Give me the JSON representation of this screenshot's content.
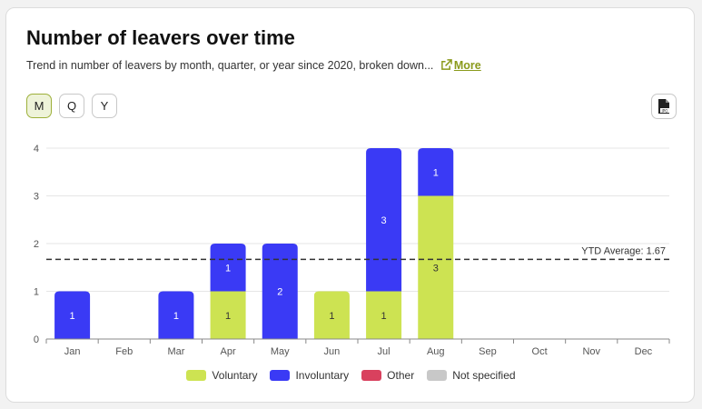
{
  "header": {
    "title": "Number of leavers over time",
    "subtitle": "Trend in number of leavers by month, quarter, or year since 2020, broken down...",
    "more_label": "More"
  },
  "period_toggle": {
    "options": [
      "M",
      "Q",
      "Y"
    ],
    "selected": "M"
  },
  "export_icon": "jpg-export-icon",
  "colors": {
    "Voluntary": "#cde352",
    "Involuntary": "#3a3af5",
    "Other": "#d9415e",
    "Not specified": "#c8c8c8",
    "accent": "#8a9a1b"
  },
  "chart_data": {
    "type": "bar",
    "stacked": true,
    "categories": [
      "Jan",
      "Feb",
      "Mar",
      "Apr",
      "May",
      "Jun",
      "Jul",
      "Aug",
      "Sep",
      "Oct",
      "Nov",
      "Dec"
    ],
    "series": [
      {
        "name": "Voluntary",
        "values": [
          0,
          0,
          0,
          1,
          0,
          1,
          1,
          3,
          0,
          0,
          0,
          0
        ]
      },
      {
        "name": "Involuntary",
        "values": [
          1,
          0,
          1,
          1,
          2,
          0,
          3,
          1,
          0,
          0,
          0,
          0
        ]
      },
      {
        "name": "Other",
        "values": [
          0,
          0,
          0,
          0,
          0,
          0,
          0,
          0,
          0,
          0,
          0,
          0
        ]
      },
      {
        "name": "Not specified",
        "values": [
          0,
          0,
          0,
          0,
          0,
          0,
          0,
          0,
          0,
          0,
          0,
          0
        ]
      }
    ],
    "yticks": [
      0,
      1,
      2,
      3,
      4
    ],
    "ylim": [
      0,
      4
    ],
    "grid": true,
    "reference_line": {
      "label": "YTD Average: 1.67",
      "value": 1.67
    },
    "legend_position": "bottom"
  }
}
